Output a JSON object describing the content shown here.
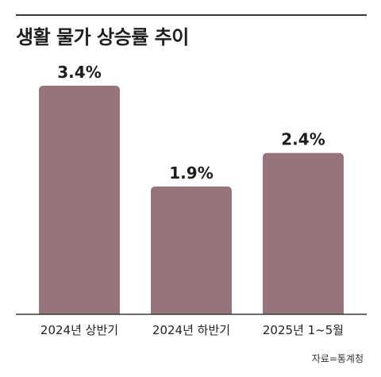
{
  "title": "생활 물가 상승률 추이",
  "source": "자료=통계청",
  "colors": {
    "bar": "#977479",
    "baseline": "#3a3a3a",
    "text": "#222222"
  },
  "chart_data": {
    "type": "bar",
    "title": "생활 물가 상승률 추이",
    "categories": [
      "2024년 상반기",
      "2024년 하반기",
      "2025년 1~5월"
    ],
    "values": [
      3.4,
      1.9,
      2.4
    ],
    "value_labels": [
      "3.4%",
      "1.9%",
      "2.4%"
    ],
    "unit": "%",
    "ylim": [
      0,
      3.4
    ],
    "grid": false,
    "legend": "none"
  }
}
